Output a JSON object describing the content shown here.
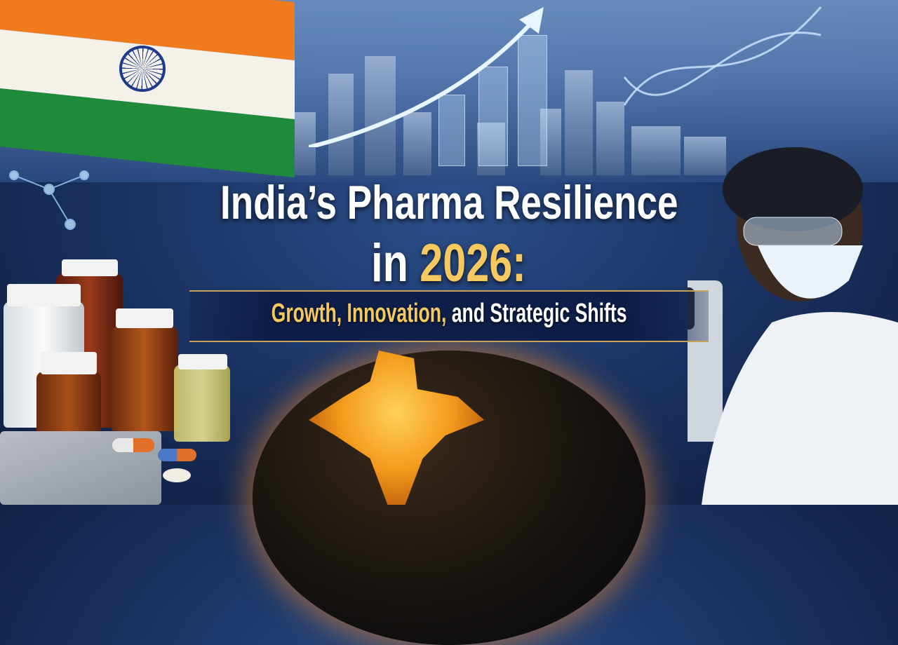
{
  "poster": {
    "title_line1": "India’s Pharma Resilience",
    "title_line2_prefix": "in",
    "title_line2_year": "2026:",
    "subtitle_highlight": "Growth, Innovation,",
    "subtitle_rest": "and Strategic Shifts"
  },
  "colors": {
    "accent_gold": "#f5c860",
    "background_blue": "#1b3566",
    "flag_saffron": "#f07a1e",
    "flag_green": "#1f8a3a",
    "globe_glow": "#f39a1c"
  },
  "icons": [
    "india-flag",
    "city-skyline",
    "growth-arrow",
    "dna-helix",
    "molecule",
    "globe-india",
    "medicine-bottles",
    "pills",
    "microscope",
    "scientist"
  ]
}
